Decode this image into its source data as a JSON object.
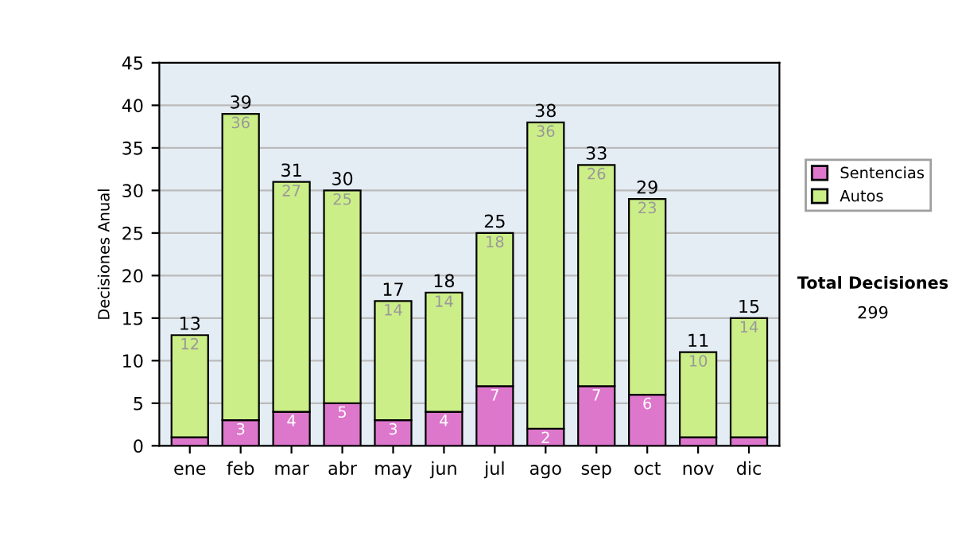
{
  "chart_data": {
    "type": "bar",
    "stacked": true,
    "ylabel": "Decisiones Anual",
    "categories": [
      "ene",
      "feb",
      "mar",
      "abr",
      "may",
      "jun",
      "jul",
      "ago",
      "sep",
      "oct",
      "nov",
      "dic"
    ],
    "series": [
      {
        "name": "Sentencias",
        "color": "#dd77cc",
        "values": [
          1,
          3,
          4,
          5,
          3,
          4,
          7,
          2,
          7,
          6,
          1,
          1
        ],
        "value_labels": [
          null,
          "3",
          "4",
          "5",
          "3",
          "4",
          "7",
          "2",
          "7",
          "6",
          null,
          null
        ]
      },
      {
        "name": "Autos",
        "color": "#ccee88",
        "values": [
          12,
          36,
          27,
          25,
          14,
          14,
          18,
          36,
          26,
          23,
          10,
          14
        ],
        "value_labels": [
          "12",
          "36",
          "27",
          "25",
          "14",
          "14",
          "18",
          "36",
          "26",
          "23",
          "10",
          "14"
        ]
      }
    ],
    "totals": [
      "13",
      "39",
      "31",
      "30",
      "17",
      "18",
      "25",
      "38",
      "33",
      "29",
      "11",
      "15"
    ],
    "ylim": [
      0,
      45
    ],
    "yticks": [
      0,
      5,
      10,
      15,
      20,
      25,
      30,
      35,
      40,
      45
    ],
    "grid": "y",
    "legend": "right",
    "annotations": [
      "Total Decisiones",
      "299"
    ]
  }
}
